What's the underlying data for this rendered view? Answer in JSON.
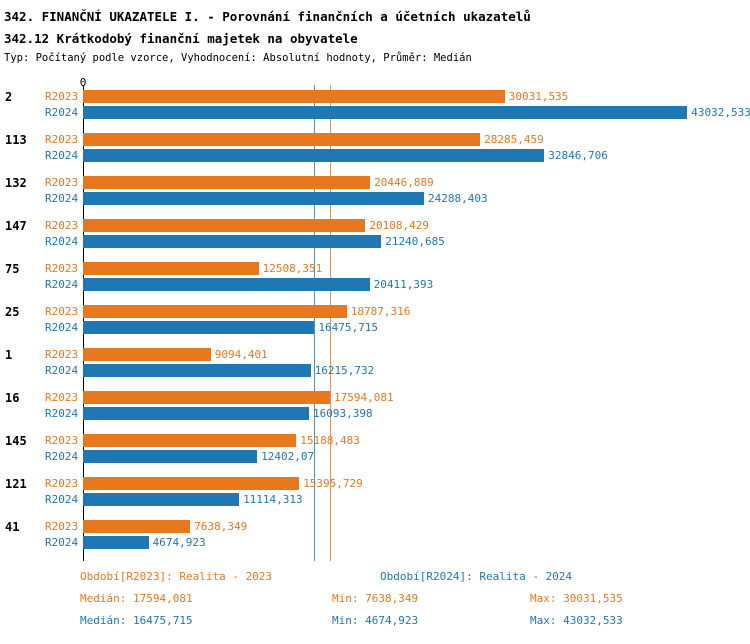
{
  "header": {
    "title1": "342. FINANČNÍ UKAZATELE I. - Porovnání finančních a účetních ukazatelů",
    "title2": "342.12 Krátkodobý finanční majetek na obyvatele",
    "subtitle": "Typ: Počítaný podle vzorce, Vyhodnocení: Absolutní hodnoty, Průměr: Medián"
  },
  "chart_data": {
    "type": "bar",
    "orientation": "horizontal",
    "axis_zero_label": "0",
    "xlim": [
      0,
      47500
    ],
    "grid": false,
    "series": [
      {
        "name": "R2023",
        "color": "#E8781E"
      },
      {
        "name": "R2024",
        "color": "#1F77B4"
      }
    ],
    "categories": [
      "2",
      "113",
      "132",
      "147",
      "75",
      "25",
      "1",
      "16",
      "145",
      "121",
      "41"
    ],
    "rows": [
      {
        "category": "2",
        "values": [
          30031.535,
          43032.533
        ],
        "labels": [
          "30031,535",
          "43032,533"
        ]
      },
      {
        "category": "113",
        "values": [
          28285.459,
          32846.706
        ],
        "labels": [
          "28285,459",
          "32846,706"
        ]
      },
      {
        "category": "132",
        "values": [
          20446.889,
          24288.403
        ],
        "labels": [
          "20446,889",
          "24288,403"
        ]
      },
      {
        "category": "147",
        "values": [
          20108.429,
          21240.685
        ],
        "labels": [
          "20108,429",
          "21240,685"
        ]
      },
      {
        "category": "75",
        "values": [
          12508.351,
          20411.393
        ],
        "labels": [
          "12508,351",
          "20411,393"
        ]
      },
      {
        "category": "25",
        "values": [
          18787.316,
          16475.715
        ],
        "labels": [
          "18787,316",
          "16475,715"
        ]
      },
      {
        "category": "1",
        "values": [
          9094.401,
          16215.732
        ],
        "labels": [
          "9094,401",
          "16215,732"
        ]
      },
      {
        "category": "16",
        "values": [
          17594.081,
          16093.398
        ],
        "labels": [
          "17594,081",
          "16093,398"
        ]
      },
      {
        "category": "145",
        "values": [
          15188.483,
          12402.07
        ],
        "labels": [
          "15188,483",
          "12402,07"
        ]
      },
      {
        "category": "121",
        "values": [
          15395.729,
          11114.313
        ],
        "labels": [
          "15395,729",
          "11114,313"
        ]
      },
      {
        "category": "41",
        "values": [
          7638.349,
          4674.923
        ],
        "labels": [
          "7638,349",
          "4674,923"
        ]
      }
    ],
    "medians": [
      {
        "series": "R2023",
        "value": 17594.081
      },
      {
        "series": "R2024",
        "value": 16475.715
      }
    ]
  },
  "footer": {
    "period_r2023": "Období[R2023]: Realita - 2023",
    "period_r2024": "Období[R2024]: Realita - 2024",
    "stats_r2023": {
      "median": "Medián: 17594,081",
      "min": "Min: 7638,349",
      "max": "Max: 30031,535"
    },
    "stats_r2024": {
      "median": "Medián: 16475,715",
      "min": "Min: 4674,923",
      "max": "Max: 43032,533"
    }
  }
}
